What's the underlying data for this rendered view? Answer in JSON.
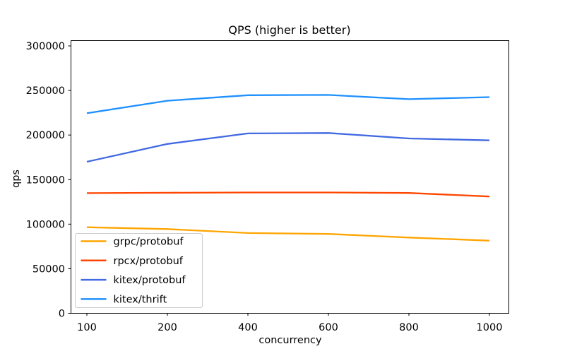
{
  "title": "QPS (higher is better)",
  "chart_data": {
    "type": "line",
    "title": "QPS (higher is better)",
    "xlabel": "concurrency",
    "ylabel": "qps",
    "categories": [
      100,
      200,
      400,
      600,
      800,
      1000
    ],
    "categories_note": "categorical spacing - ticks evenly spaced",
    "series": [
      {
        "name": "grpc/protobuf",
        "color": "#FFA500",
        "values": [
          96500,
          94500,
          90000,
          89000,
          85000,
          81500
        ]
      },
      {
        "name": "rpcx/protobuf",
        "color": "#FF4500",
        "values": [
          134800,
          135200,
          135500,
          135500,
          135000,
          131000
        ]
      },
      {
        "name": "kitex/protobuf",
        "color": "#4169E1",
        "values": [
          170000,
          190000,
          201800,
          202300,
          196200,
          194000
        ]
      },
      {
        "name": "kitex/thrift",
        "color": "#1E90FF",
        "values": [
          224500,
          238500,
          244700,
          245000,
          240200,
          242500
        ]
      }
    ],
    "yticks": [
      0,
      50000,
      100000,
      150000,
      200000,
      250000,
      300000
    ],
    "ylim": [
      0,
      306000
    ],
    "grid": false,
    "legend_position": "lower left",
    "background": "#ffffff"
  }
}
